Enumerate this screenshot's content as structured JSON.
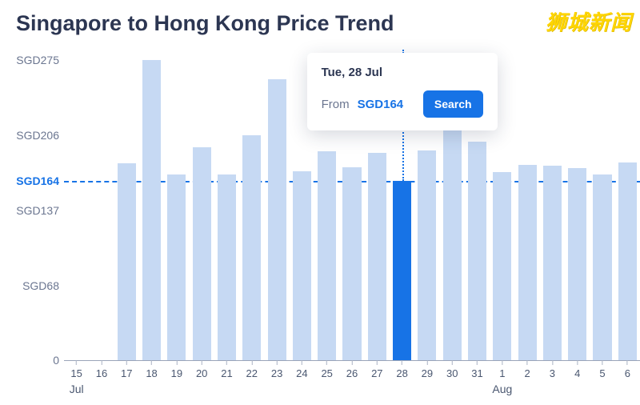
{
  "title": "Singapore to Hong Kong Price Trend",
  "watermark": "狮城新闻",
  "chart": {
    "type": "bar",
    "background_color": "#ffffff",
    "axis_color": "#9aa4b8",
    "tick_text_color": "#4a5770",
    "ylabel_color": "#6b7690",
    "bar_color": "#c6d9f3",
    "bar_highlight_color": "#1773e6",
    "reference_line_color": "#1773e6",
    "reference_value": 164,
    "reference_label": "SGD164",
    "reference_label_color": "#1773e6",
    "bar_width_ratio": 0.74,
    "ylim": [
      0,
      280
    ],
    "yticks": [
      {
        "value": 0,
        "label": "0"
      },
      {
        "value": 68,
        "label": "SGD68"
      },
      {
        "value": 137,
        "label": "SGD137"
      },
      {
        "value": 206,
        "label": "SGD206"
      },
      {
        "value": 275,
        "label": "SGD275"
      }
    ],
    "x_month_markers": [
      {
        "at_index": 0,
        "label": "Jul"
      },
      {
        "at_index": 17,
        "label": "Aug"
      }
    ],
    "highlight_index": 13,
    "categories": [
      "15",
      "16",
      "17",
      "18",
      "19",
      "20",
      "21",
      "22",
      "23",
      "24",
      "25",
      "26",
      "27",
      "28",
      "29",
      "30",
      "31",
      "1",
      "2",
      "3",
      "4",
      "5",
      "6"
    ],
    "values": [
      null,
      null,
      180,
      275,
      170,
      195,
      170,
      206,
      257,
      173,
      191,
      177,
      190,
      164,
      192,
      258,
      200,
      172,
      179,
      178,
      176,
      170,
      181
    ]
  },
  "tooltip": {
    "date": "Tue, 28 Jul",
    "from_label": "From",
    "price": "SGD164",
    "price_color": "#1773e6",
    "search_label": "Search",
    "button_color": "#1773e6"
  }
}
